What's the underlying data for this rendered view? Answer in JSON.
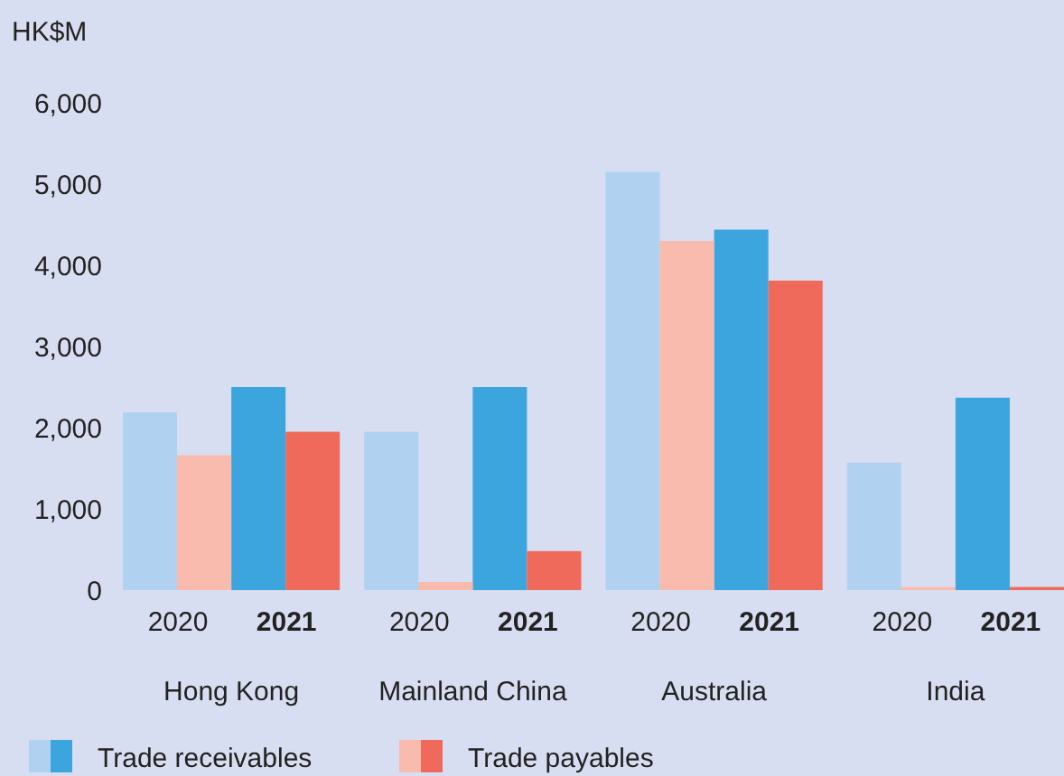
{
  "chart_data": {
    "type": "bar",
    "ylabel": "HK$M",
    "categories": [
      "2020",
      "2021",
      "2020",
      "2021",
      "2020",
      "2021",
      "2020",
      "2021"
    ],
    "series": [
      {
        "name": "Trade receivables",
        "colors": [
          "#b0d2f0",
          "#3ca5dd",
          "#b0d2f0",
          "#3ca5dd",
          "#b0d2f0",
          "#3ca5dd",
          "#b0d2f0",
          "#3ca5dd"
        ],
        "values": [
          2190,
          2500,
          1950,
          2500,
          5150,
          4440,
          1570,
          2370
        ]
      },
      {
        "name": "Trade payables",
        "colors": [
          "#f8bbad",
          "#ef6a5a",
          "#f8bbad",
          "#ef6a5a",
          "#f8bbad",
          "#ef6a5a",
          "#f8bbad",
          "#ef6a5a"
        ],
        "values": [
          1660,
          1950,
          100,
          480,
          4300,
          3810,
          40,
          40
        ]
      }
    ],
    "annotations": [
      "Hong Kong",
      "Mainland China",
      "Australia",
      "India"
    ],
    "ylim": [
      0,
      6000
    ],
    "yticks": [
      0,
      {
        "value": 1000,
        "label": "1,000"
      },
      {
        "value": 2000,
        "label": "2,000"
      },
      {
        "value": 3000,
        "label": "3,000"
      },
      {
        "value": 4000,
        "label": "4,000"
      },
      {
        "value": 5000,
        "label": "5,000"
      },
      {
        "value": 6000,
        "label": "6,000"
      }
    ],
    "grid": false,
    "legend": "bottom"
  }
}
